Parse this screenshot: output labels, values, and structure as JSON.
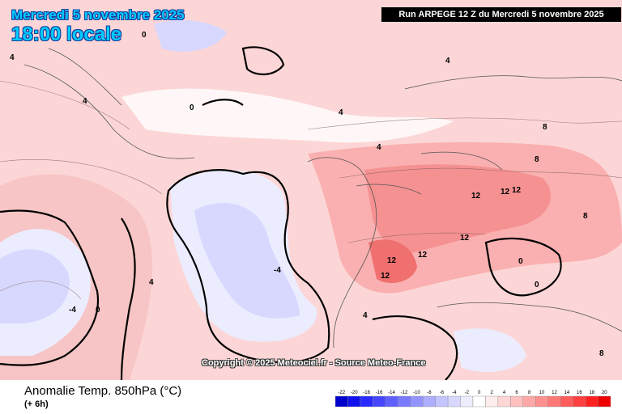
{
  "header": {
    "date_line": "Mercredi 5 novembre 2025",
    "time_line": "18:00 locale",
    "run_info": "Run ARPEGE 12 Z du Mercredi 5 novembre 2025"
  },
  "map": {
    "copyright": "Copyright (c) 2025 Meteociel.fr - Source Meteo-France",
    "copyright_display": "Copyright © 2025 Meteociel.fr - Source Meteo-France",
    "contour_labels": [
      "-4",
      "0",
      "4",
      "8",
      "12"
    ]
  },
  "footer": {
    "variable_title": "Anomalie Temp. 850hPa (°C)",
    "variable_sub": "(+ 6h)"
  },
  "legend": {
    "ticks": [
      "-22",
      "-20",
      "-18",
      "-16",
      "-14",
      "-12",
      "-10",
      "-8",
      "-6",
      "-4",
      "-2",
      "0",
      "2",
      "4",
      "6",
      "8",
      "10",
      "12",
      "14",
      "16",
      "18",
      "20"
    ],
    "colors": [
      "#0000cc",
      "#1010ee",
      "#2a2aff",
      "#4646ff",
      "#6060ff",
      "#7a7aff",
      "#9494ff",
      "#aeaeff",
      "#c4c4ff",
      "#d8d8ff",
      "#ececff",
      "#ffffff",
      "#ffecec",
      "#ffd6d6",
      "#ffc0c0",
      "#ffa8a8",
      "#ff9090",
      "#ff7878",
      "#ff5c5c",
      "#ff4040",
      "#ff2020",
      "#ee0000"
    ]
  }
}
